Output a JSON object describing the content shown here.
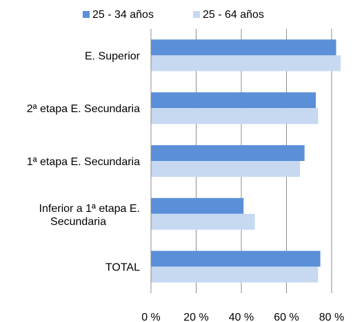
{
  "chart_data": {
    "type": "bar",
    "orientation": "horizontal",
    "categories": [
      "E. Superior",
      "2ª etapa E. Secundaria",
      "1ª etapa E. Secundaria",
      "Inferior a 1ª etapa E. Secundaria",
      "TOTAL"
    ],
    "series": [
      {
        "name": "25 - 34 años",
        "values": [
          82,
          73,
          68,
          41,
          75
        ],
        "color": "#5b8fd8"
      },
      {
        "name": "25 - 64 años",
        "values": [
          84,
          74,
          66,
          46,
          74
        ],
        "color": "#c6d9f1"
      }
    ],
    "x_ticks": [
      "0 %",
      "20 %",
      "40 %",
      "60 %",
      "80 %"
    ],
    "xlim": [
      0,
      90
    ],
    "title": "",
    "xlabel": "",
    "ylabel": "",
    "grid": true,
    "legend": "top"
  }
}
